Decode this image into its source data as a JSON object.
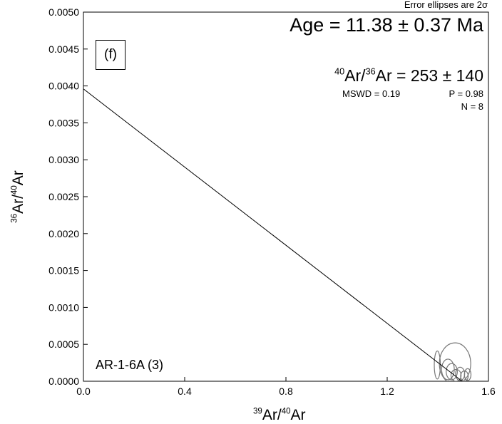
{
  "chart_data": {
    "type": "scatter",
    "panel_label": "(f)",
    "note": "Error ellipses are 2σ",
    "sample_label": "AR-1-6A (3)",
    "xlabel": {
      "sup1": "39",
      "base1": "Ar/",
      "sup2": "40",
      "base2": "Ar"
    },
    "ylabel": {
      "sup1": "36",
      "base1": "Ar/",
      "sup2": "40",
      "base2": "Ar"
    },
    "xlim": [
      0.0,
      1.6
    ],
    "ylim": [
      0.0,
      0.005
    ],
    "x_ticks": [
      "0.0",
      "0.4",
      "0.8",
      "1.2",
      "1.6"
    ],
    "y_ticks": [
      "0.0000",
      "0.0005",
      "0.0010",
      "0.0015",
      "0.0020",
      "0.0025",
      "0.0030",
      "0.0035",
      "0.0040",
      "0.0045",
      "0.0050"
    ],
    "age_text": "Age = 11.38 ± 0.37 Ma",
    "ratio": {
      "sup1": "40",
      "base1": "Ar/",
      "sup2": "36",
      "base2": "Ar = 253 ± 140"
    },
    "mswd_text": "MSWD = 0.19",
    "p_text": "P = 0.98",
    "n_text": "N = 8",
    "isochron_line": {
      "y_intercept": 0.00396,
      "x_intercept": 1.496
    },
    "ellipses": [
      {
        "x": 1.398,
        "y": 0.00022,
        "rx": 0.012,
        "ry": 0.00019
      },
      {
        "x": 1.44,
        "y": 0.00016,
        "rx": 0.025,
        "ry": 0.00014
      },
      {
        "x": 1.455,
        "y": 0.00013,
        "rx": 0.022,
        "ry": 0.00011
      },
      {
        "x": 1.468,
        "y": 0.00024,
        "rx": 0.062,
        "ry": 0.00028
      },
      {
        "x": 1.472,
        "y": 8e-05,
        "rx": 0.02,
        "ry": 8e-05
      },
      {
        "x": 1.488,
        "y": 0.0001,
        "rx": 0.018,
        "ry": 9e-05
      },
      {
        "x": 1.505,
        "y": 7e-05,
        "rx": 0.015,
        "ry": 7e-05
      },
      {
        "x": 1.518,
        "y": 9e-05,
        "rx": 0.013,
        "ry": 8e-05
      }
    ]
  }
}
